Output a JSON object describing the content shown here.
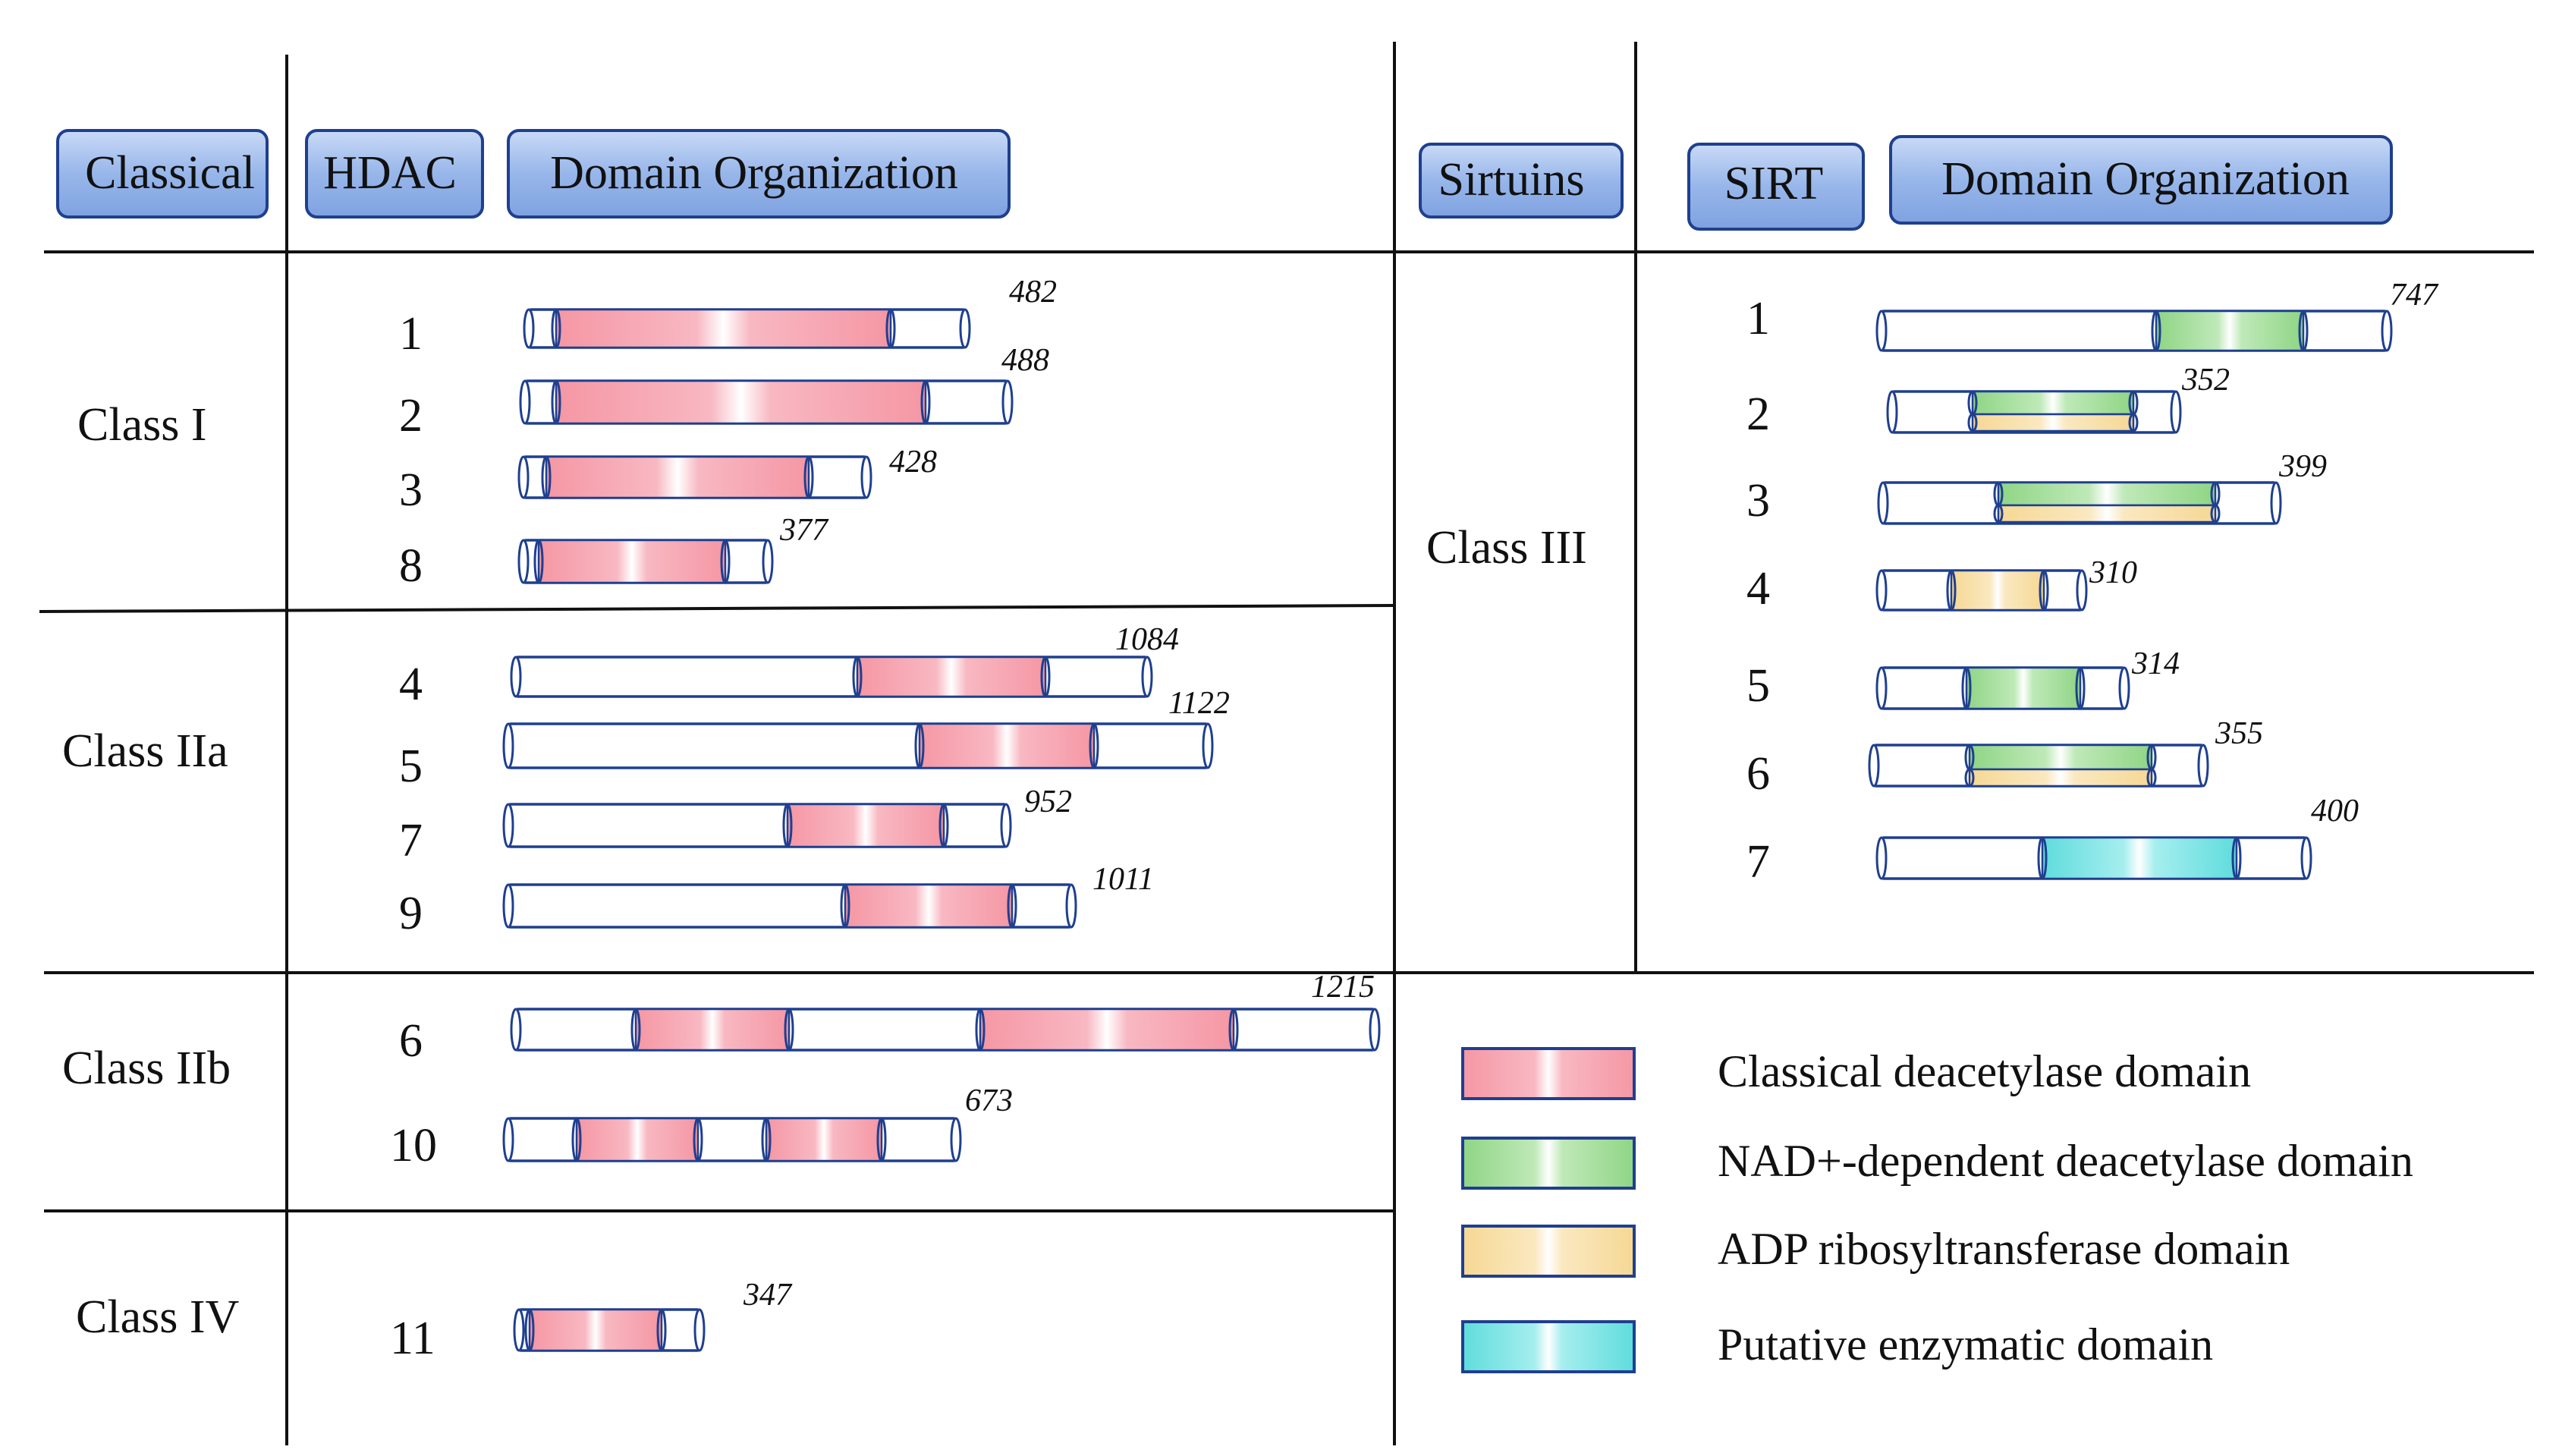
{
  "colors": {
    "classical": "#f597a4",
    "nad": "#9fdb96",
    "adp": "#f8dc9c",
    "putative": "#3ad8d4",
    "outline": "#1f3f8f",
    "header_fill": "#8fb0e6",
    "line": "#111111"
  },
  "headers": {
    "classical": "Classical",
    "hdac": "HDAC",
    "domain_left": "Domain Organization",
    "sirtuins": "Sirtuins",
    "sirt": "SIRT",
    "domain_right": "Domain Organization"
  },
  "classes": {
    "class_i": "Class I",
    "class_iia": "Class IIa",
    "class_iib": "Class IIb",
    "class_iv": "Class IV",
    "class_iii": "Class III"
  },
  "hdacs": [
    {
      "id": "1",
      "length": "482"
    },
    {
      "id": "2",
      "length": "488"
    },
    {
      "id": "3",
      "length": "428"
    },
    {
      "id": "8",
      "length": "377"
    },
    {
      "id": "4",
      "length": "1084"
    },
    {
      "id": "5",
      "length": "1122"
    },
    {
      "id": "7",
      "length": "952"
    },
    {
      "id": "9",
      "length": "1011"
    },
    {
      "id": "6",
      "length": "1215"
    },
    {
      "id": "10",
      "length": "673"
    },
    {
      "id": "11",
      "length": "347"
    }
  ],
  "sirts": [
    {
      "id": "1",
      "length": "747"
    },
    {
      "id": "2",
      "length": "352"
    },
    {
      "id": "3",
      "length": "399"
    },
    {
      "id": "4",
      "length": "310"
    },
    {
      "id": "5",
      "length": "314"
    },
    {
      "id": "6",
      "length": "355"
    },
    {
      "id": "7",
      "length": "400"
    }
  ],
  "legend": [
    {
      "key": "classical",
      "label": "Classical deacetylase domain"
    },
    {
      "key": "nad",
      "label": "NAD+-dependent deacetylase domain"
    },
    {
      "key": "adp",
      "label": "ADP ribosyltransferase domain"
    },
    {
      "key": "putative",
      "label": "Putative enzymatic domain"
    }
  ]
}
